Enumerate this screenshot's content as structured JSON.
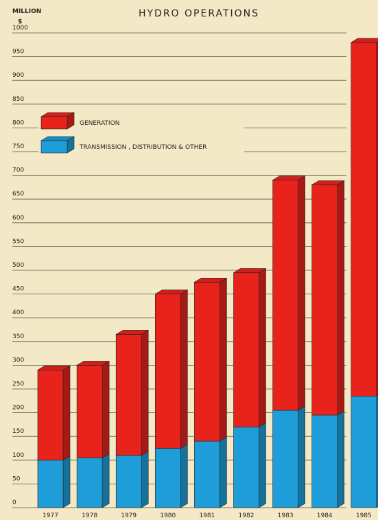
{
  "chart_data": {
    "type": "bar",
    "stacked": true,
    "title": "HYDRO OPERATIONS",
    "ylabel": [
      "MILLION",
      "$"
    ],
    "categories": [
      "1977",
      "1978",
      "1979",
      "1980",
      "1981",
      "1982",
      "1983",
      "1984",
      "1985"
    ],
    "series": [
      {
        "name": "TRANSMISSION , DISTRIBUTION & OTHER",
        "color": "#1f9dd8",
        "values": [
          100,
          105,
          110,
          125,
          140,
          170,
          205,
          195,
          235
        ]
      },
      {
        "name": "GENERATION",
        "color": "#e8231c",
        "values": [
          190,
          195,
          255,
          325,
          335,
          325,
          485,
          485,
          745
        ]
      }
    ],
    "ylim": [
      0,
      1000
    ],
    "yticks": [
      0,
      50,
      100,
      150,
      200,
      250,
      300,
      350,
      400,
      450,
      500,
      550,
      600,
      650,
      700,
      750,
      800,
      850,
      900,
      950,
      1000
    ],
    "grid": true
  }
}
